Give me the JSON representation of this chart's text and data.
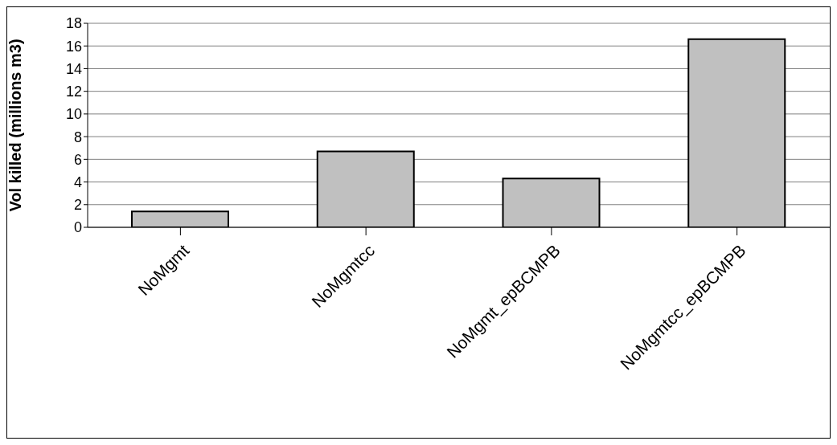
{
  "chart_data": {
    "type": "bar",
    "ylabel": "Vol killed (millions m3)",
    "categories": [
      "NoMgmt",
      "NoMgmtcc",
      "NoMgmt_epBCMPB",
      "NoMgmtcc_epBCMPB"
    ],
    "values": [
      1.4,
      6.7,
      4.3,
      16.6
    ],
    "color": "#c0c0c0",
    "ylim": [
      0,
      18
    ],
    "yticks": [
      0,
      2,
      4,
      6,
      8,
      10,
      12,
      14,
      16,
      18
    ],
    "grid": "y"
  }
}
